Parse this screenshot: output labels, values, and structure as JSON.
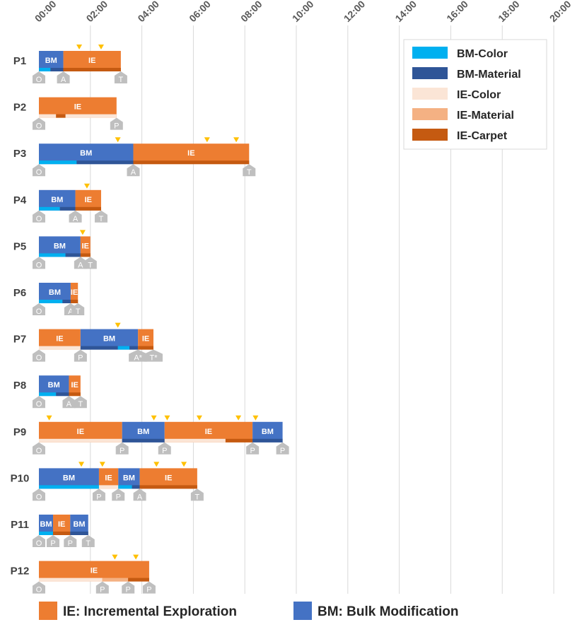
{
  "chart_data": {
    "type": "timeline",
    "x_unit": "minutes",
    "x_ticks": [
      {
        "value": 0,
        "label": "00:00"
      },
      {
        "value": 120,
        "label": "02:00"
      },
      {
        "value": 240,
        "label": "04:00"
      },
      {
        "value": 360,
        "label": "06:00"
      },
      {
        "value": 480,
        "label": "08:00"
      },
      {
        "value": 600,
        "label": "10:00"
      },
      {
        "value": 720,
        "label": "12:00"
      },
      {
        "value": 840,
        "label": "14:00"
      },
      {
        "value": 960,
        "label": "16:00"
      },
      {
        "value": 1080,
        "label": "18:00"
      },
      {
        "value": 1200,
        "label": "20:00"
      }
    ],
    "xlim": [
      0,
      1200
    ],
    "grid": true,
    "legend": {
      "placement": "top-right",
      "items": [
        {
          "key": "bm_color",
          "label": "BM-Color",
          "color": "#00b0f0"
        },
        {
          "key": "bm_material",
          "label": "BM-Material",
          "color": "#2f5597"
        },
        {
          "key": "ie_color",
          "label": "IE-Color",
          "color": "#fbe5d6"
        },
        {
          "key": "ie_material",
          "label": "IE-Material",
          "color": "#f4b183"
        },
        {
          "key": "ie_carpet",
          "label": "IE-Carpet",
          "color": "#c55a11"
        }
      ]
    },
    "mode_legend": {
      "placement": "bottom",
      "items": [
        {
          "key": "IE",
          "label": "IE: Incremental Exploration",
          "color": "#ed7d31"
        },
        {
          "key": "BM",
          "label": "BM: Bulk Modification",
          "color": "#4472c4"
        }
      ]
    },
    "colors": {
      "BM": "#4472c4",
      "IE": "#ed7d31",
      "bm_color": "#00b0f0",
      "bm_material": "#2f5597",
      "ie_color": "#fbe5d6",
      "ie_material": "#f4b183",
      "ie_carpet": "#c55a11",
      "triangle": "#ffc000",
      "marker": "#bfbfbf"
    },
    "participants": [
      {
        "name": "P1",
        "segments": [
          {
            "mode": "BM",
            "start": 0,
            "end": 57,
            "label": "BM"
          },
          {
            "mode": "IE",
            "start": 57,
            "end": 191,
            "label": "IE"
          }
        ],
        "strip": [
          {
            "type": "bm_color",
            "start": 0,
            "end": 27
          },
          {
            "type": "bm_material",
            "start": 27,
            "end": 57
          },
          {
            "type": "ie_carpet",
            "start": 57,
            "end": 191
          }
        ],
        "triangles": [
          94,
          145
        ],
        "markers": [
          {
            "t": 0,
            "label": "O"
          },
          {
            "t": 57,
            "label": "A"
          },
          {
            "t": 191,
            "label": "T"
          }
        ]
      },
      {
        "name": "P2",
        "segments": [
          {
            "mode": "IE",
            "start": 0,
            "end": 181,
            "label": "IE"
          }
        ],
        "strip": [
          {
            "type": "ie_color",
            "start": 0,
            "end": 40
          },
          {
            "type": "ie_carpet",
            "start": 40,
            "end": 62
          },
          {
            "type": "ie_color",
            "start": 62,
            "end": 181
          }
        ],
        "triangles": [],
        "markers": [
          {
            "t": 0,
            "label": "O"
          },
          {
            "t": 181,
            "label": "P"
          }
        ]
      },
      {
        "name": "P3",
        "segments": [
          {
            "mode": "BM",
            "start": 0,
            "end": 220,
            "label": "BM"
          },
          {
            "mode": "IE",
            "start": 220,
            "end": 490,
            "label": "IE"
          }
        ],
        "strip": [
          {
            "type": "bm_color",
            "start": 0,
            "end": 88
          },
          {
            "type": "bm_material",
            "start": 88,
            "end": 220
          },
          {
            "type": "ie_carpet",
            "start": 220,
            "end": 490
          }
        ],
        "triangles": [
          184,
          392,
          460
        ],
        "markers": [
          {
            "t": 0,
            "label": "O"
          },
          {
            "t": 220,
            "label": "A"
          },
          {
            "t": 490,
            "label": "T"
          }
        ]
      },
      {
        "name": "P4",
        "segments": [
          {
            "mode": "BM",
            "start": 0,
            "end": 85,
            "label": "BM"
          },
          {
            "mode": "IE",
            "start": 85,
            "end": 145,
            "label": "IE"
          }
        ],
        "strip": [
          {
            "type": "bm_color",
            "start": 0,
            "end": 49
          },
          {
            "type": "bm_material",
            "start": 49,
            "end": 85
          },
          {
            "type": "ie_carpet",
            "start": 85,
            "end": 145
          }
        ],
        "triangles": [
          112
        ],
        "markers": [
          {
            "t": 0,
            "label": "O"
          },
          {
            "t": 85,
            "label": "A"
          },
          {
            "t": 145,
            "label": "T"
          }
        ]
      },
      {
        "name": "P5",
        "segments": [
          {
            "mode": "BM",
            "start": 0,
            "end": 97,
            "label": "BM"
          },
          {
            "mode": "IE",
            "start": 97,
            "end": 120,
            "label": "IE"
          }
        ],
        "strip": [
          {
            "type": "bm_color",
            "start": 0,
            "end": 62
          },
          {
            "type": "bm_material",
            "start": 62,
            "end": 97
          },
          {
            "type": "ie_carpet",
            "start": 97,
            "end": 120
          }
        ],
        "triangles": [
          102
        ],
        "markers": [
          {
            "t": 0,
            "label": "O"
          },
          {
            "t": 97,
            "label": "A"
          },
          {
            "t": 120,
            "label": "T"
          }
        ]
      },
      {
        "name": "P6",
        "segments": [
          {
            "mode": "BM",
            "start": 0,
            "end": 74,
            "label": "BM"
          },
          {
            "mode": "IE",
            "start": 74,
            "end": 91,
            "label": "IE"
          }
        ],
        "strip": [
          {
            "type": "bm_color",
            "start": 0,
            "end": 55
          },
          {
            "type": "bm_material",
            "start": 55,
            "end": 74
          },
          {
            "type": "ie_carpet",
            "start": 74,
            "end": 91
          }
        ],
        "triangles": [],
        "markers": [
          {
            "t": 0,
            "label": "O"
          },
          {
            "t": 74,
            "label": "A"
          },
          {
            "t": 91,
            "label": "T"
          }
        ]
      },
      {
        "name": "P7",
        "segments": [
          {
            "mode": "IE",
            "start": 0,
            "end": 97,
            "label": "IE"
          },
          {
            "mode": "BM",
            "start": 97,
            "end": 231,
            "label": "BM"
          },
          {
            "mode": "IE",
            "start": 231,
            "end": 267,
            "label": "IE"
          }
        ],
        "strip": [
          {
            "type": "ie_color",
            "start": 0,
            "end": 97
          },
          {
            "type": "bm_material",
            "start": 97,
            "end": 184
          },
          {
            "type": "bm_color",
            "start": 184,
            "end": 211
          },
          {
            "type": "bm_material",
            "start": 211,
            "end": 231
          },
          {
            "type": "ie_carpet",
            "start": 231,
            "end": 267
          }
        ],
        "triangles": [
          184
        ],
        "markers": [
          {
            "t": 0,
            "label": "O"
          },
          {
            "t": 97,
            "label": "P"
          },
          {
            "t": 231,
            "label": "A*"
          },
          {
            "t": 267,
            "label": "T*"
          }
        ]
      },
      {
        "name": "P8",
        "segments": [
          {
            "mode": "BM",
            "start": 0,
            "end": 70,
            "label": "BM"
          },
          {
            "mode": "IE",
            "start": 70,
            "end": 97,
            "label": "IE"
          }
        ],
        "strip": [
          {
            "type": "bm_color",
            "start": 0,
            "end": 40
          },
          {
            "type": "bm_material",
            "start": 40,
            "end": 70
          },
          {
            "type": "ie_carpet",
            "start": 70,
            "end": 97
          }
        ],
        "triangles": [],
        "markers": [
          {
            "t": 0,
            "label": "O"
          },
          {
            "t": 70,
            "label": "A"
          },
          {
            "t": 97,
            "label": "T"
          }
        ]
      },
      {
        "name": "P9",
        "segments": [
          {
            "mode": "IE",
            "start": 0,
            "end": 194,
            "label": "IE"
          },
          {
            "mode": "BM",
            "start": 194,
            "end": 293,
            "label": "BM"
          },
          {
            "mode": "IE",
            "start": 293,
            "end": 498,
            "label": "IE"
          },
          {
            "mode": "BM",
            "start": 498,
            "end": 568,
            "label": "BM"
          }
        ],
        "strip": [
          {
            "type": "ie_color",
            "start": 0,
            "end": 194
          },
          {
            "type": "bm_material",
            "start": 194,
            "end": 293
          },
          {
            "type": "ie_color",
            "start": 293,
            "end": 435
          },
          {
            "type": "ie_carpet",
            "start": 435,
            "end": 498
          },
          {
            "type": "bm_material",
            "start": 498,
            "end": 568
          }
        ],
        "triangles": [
          24,
          268,
          299,
          374,
          465,
          505
        ],
        "markers": [
          {
            "t": 0,
            "label": "O"
          },
          {
            "t": 194,
            "label": "P"
          },
          {
            "t": 293,
            "label": "P"
          },
          {
            "t": 498,
            "label": "P"
          },
          {
            "t": 568,
            "label": "P"
          }
        ]
      },
      {
        "name": "P10",
        "segments": [
          {
            "mode": "BM",
            "start": 0,
            "end": 140,
            "label": "BM"
          },
          {
            "mode": "IE",
            "start": 140,
            "end": 185,
            "label": "IE"
          },
          {
            "mode": "BM",
            "start": 185,
            "end": 235,
            "label": "BM"
          },
          {
            "mode": "IE",
            "start": 235,
            "end": 369,
            "label": "IE"
          }
        ],
        "strip": [
          {
            "type": "bm_color",
            "start": 0,
            "end": 140
          },
          {
            "type": "ie_color",
            "start": 140,
            "end": 185
          },
          {
            "type": "bm_color",
            "start": 185,
            "end": 217
          },
          {
            "type": "bm_material",
            "start": 217,
            "end": 235
          },
          {
            "type": "ie_carpet",
            "start": 235,
            "end": 369
          }
        ],
        "triangles": [
          99,
          148,
          274,
          338
        ],
        "markers": [
          {
            "t": 0,
            "label": "O"
          },
          {
            "t": 140,
            "label": "P"
          },
          {
            "t": 185,
            "label": "P"
          },
          {
            "t": 235,
            "label": "A"
          },
          {
            "t": 369,
            "label": "T"
          }
        ]
      },
      {
        "name": "P11",
        "segments": [
          {
            "mode": "BM",
            "start": 0,
            "end": 33,
            "label": "BM"
          },
          {
            "mode": "IE",
            "start": 33,
            "end": 73,
            "label": "IE"
          },
          {
            "mode": "BM",
            "start": 73,
            "end": 115,
            "label": "BM"
          }
        ],
        "strip": [
          {
            "type": "bm_color",
            "start": 0,
            "end": 33
          },
          {
            "type": "ie_carpet",
            "start": 33,
            "end": 73
          },
          {
            "type": "bm_material",
            "start": 73,
            "end": 115
          }
        ],
        "triangles": [],
        "markers": [
          {
            "t": 0,
            "label": "O"
          },
          {
            "t": 33,
            "label": "P"
          },
          {
            "t": 73,
            "label": "P"
          },
          {
            "t": 115,
            "label": "T"
          }
        ]
      },
      {
        "name": "P12",
        "segments": [
          {
            "mode": "IE",
            "start": 0,
            "end": 257,
            "label": "IE"
          }
        ],
        "strip": [
          {
            "type": "ie_color",
            "start": 0,
            "end": 148
          },
          {
            "type": "ie_material",
            "start": 148,
            "end": 208
          },
          {
            "type": "ie_carpet",
            "start": 208,
            "end": 257
          }
        ],
        "triangles": [
          177,
          226
        ],
        "markers": [
          {
            "t": 0,
            "label": "O"
          },
          {
            "t": 148,
            "label": "P"
          },
          {
            "t": 208,
            "label": "P"
          },
          {
            "t": 257,
            "label": "P"
          }
        ]
      }
    ]
  }
}
